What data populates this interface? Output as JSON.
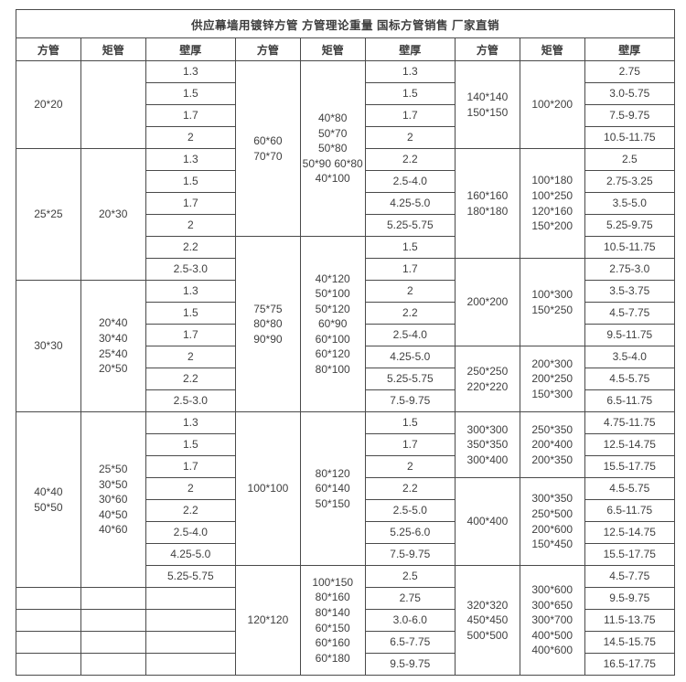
{
  "chart_data": {
    "type": "table",
    "title": "供应幕墙用镀锌方管 方管理论重量 国标方管销售 厂家直销",
    "columns": {
      "square": "方管",
      "rect": "矩管",
      "thickness": "壁厚"
    },
    "groups": [
      {
        "blocks": [
          {
            "square": "20*20",
            "rect": "",
            "values": [
              "1.3",
              "1.5",
              "1.7",
              "2"
            ]
          },
          {
            "square": "25*25",
            "rect": "20*30",
            "values": [
              "1.3",
              "1.5",
              "1.7",
              "2",
              "2.2",
              "2.5-3.0"
            ]
          },
          {
            "square": "30*30",
            "rect": "20*40\n30*40\n25*40\n20*50",
            "values": [
              "1.3",
              "1.5",
              "1.7",
              "2",
              "2.2",
              "2.5-3.0"
            ]
          },
          {
            "square": "40*40\n50*50",
            "rect": "25*50\n30*50\n30*60\n40*50\n40*60",
            "values": [
              "1.3",
              "1.5",
              "1.7",
              "2",
              "2.2",
              "2.5-4.0",
              "4.25-5.0",
              "5.25-5.75"
            ]
          },
          {
            "merged": false,
            "square": "",
            "rect": "",
            "values": [
              "",
              "",
              "",
              ""
            ]
          }
        ]
      },
      {
        "blocks": [
          {
            "square": "60*60\n70*70",
            "rect": "40*80\n50*70\n50*80\n50*90 60*80\n40*100",
            "values": [
              "1.3",
              "1.5",
              "1.7",
              "2",
              "2.2",
              "2.5-4.0",
              "4.25-5.0",
              "5.25-5.75"
            ]
          },
          {
            "square": "75*75\n80*80\n90*90",
            "rect": "40*120\n50*100\n50*120\n60*90\n60*100\n60*120\n80*100",
            "values": [
              "1.5",
              "1.7",
              "2",
              "2.2",
              "2.5-4.0",
              "4.25-5.0",
              "5.25-5.75",
              "7.5-9.75"
            ]
          },
          {
            "square": "100*100",
            "rect": "80*120\n60*140\n50*150",
            "values": [
              "1.5",
              "1.7",
              "2",
              "2.2",
              "2.5-5.0",
              "5.25-6.0",
              "7.5-9.75"
            ]
          },
          {
            "square": "120*120",
            "rect": "100*150\n80*160\n80*140\n60*150\n60*160\n60*180",
            "values": [
              "2.5",
              "2.75",
              "3.0-6.0",
              "6.5-7.75",
              "9.5-9.75"
            ]
          }
        ]
      },
      {
        "blocks": [
          {
            "square": "140*140\n150*150",
            "rect": "100*200",
            "values": [
              "2.75",
              "3.0-5.75",
              "7.5-9.75",
              "10.5-11.75"
            ]
          },
          {
            "square": "160*160\n180*180",
            "rect": "100*180\n100*250\n120*160\n150*200",
            "values": [
              "2.5",
              "2.75-3.25",
              "3.5-5.0",
              "5.25-9.75",
              "10.5-11.75"
            ]
          },
          {
            "square": "200*200",
            "rect": "100*300\n150*250",
            "values": [
              "2.75-3.0",
              "3.5-3.75",
              "4.5-7.75",
              "9.5-11.75"
            ]
          },
          {
            "square": "250*250\n220*220",
            "rect": "200*300\n200*250\n150*300",
            "values": [
              "3.5-4.0",
              "4.5-5.75",
              "6.5-11.75"
            ]
          },
          {
            "square": "300*300\n350*350\n300*400",
            "rect": "250*350\n200*400\n200*350",
            "values": [
              "4.75-11.75",
              "12.5-14.75",
              "15.5-17.75"
            ]
          },
          {
            "square": "400*400",
            "rect": "300*350\n250*500\n200*600\n150*450",
            "values": [
              "4.5-5.75",
              "6.5-11.75",
              "12.5-14.75",
              "15.5-17.75"
            ]
          },
          {
            "square": "320*320\n450*450\n500*500",
            "rect": "300*600\n300*650\n300*700\n400*500\n400*600",
            "values": [
              "4.5-7.75",
              "9.5-9.75",
              "11.5-13.75",
              "14.5-15.75",
              "16.5-17.75"
            ]
          }
        ]
      }
    ]
  }
}
